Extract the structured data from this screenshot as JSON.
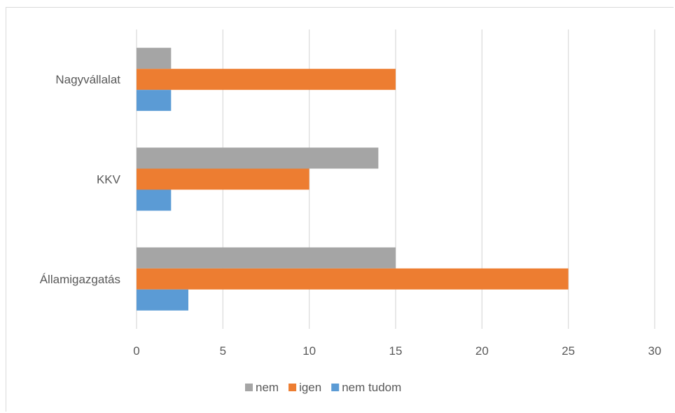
{
  "chart_data": {
    "type": "bar",
    "orientation": "horizontal",
    "categories": [
      "Nagyvállalat",
      "KKV",
      "Államigazgatás"
    ],
    "series": [
      {
        "name": "nem",
        "color": "#a5a5a5",
        "values": [
          2,
          14,
          15
        ]
      },
      {
        "name": "igen",
        "color": "#ed7d31",
        "values": [
          15,
          10,
          25
        ]
      },
      {
        "name": "nem tudom",
        "color": "#5b9bd5",
        "values": [
          2,
          2,
          3
        ]
      }
    ],
    "xlim": [
      0,
      30
    ],
    "xticks": [
      0,
      5,
      10,
      15,
      20,
      25,
      30
    ],
    "grid": true,
    "legend_position": "bottom",
    "title": "",
    "xlabel": "",
    "ylabel": ""
  }
}
